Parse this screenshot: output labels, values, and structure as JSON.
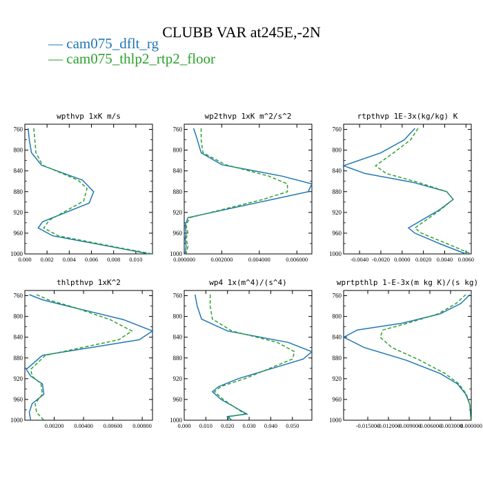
{
  "title": "CLUBB VAR at245E,-2N",
  "legend": [
    {
      "label": "— cam075_dflt_rg",
      "color": "#1f77b4"
    },
    {
      "label": "— cam075_thlp2_rtp2_floor",
      "color": "#2ca02c"
    }
  ],
  "chart_data": [
    {
      "type": "line",
      "title": "wpthvp  1xK m/s",
      "ylim": [
        1000,
        750
      ],
      "yticks": [
        "760",
        "800",
        "840",
        "880",
        "920",
        "960",
        "1000"
      ],
      "xlim": [
        0,
        0.0115
      ],
      "xticks": [
        {
          "v": 0.0,
          "label": "0.000"
        },
        {
          "v": 0.002,
          "label": "0.002"
        },
        {
          "v": 0.004,
          "label": "0.004"
        },
        {
          "v": 0.006,
          "label": "0.006"
        },
        {
          "v": 0.008,
          "label": "0.008"
        },
        {
          "v": 0.01,
          "label": "0.010"
        }
      ],
      "series": [
        {
          "name": "cam075_dflt_rg",
          "x": [
            0.0003,
            0.0004,
            0.0006,
            0.0015,
            0.0052,
            0.0062,
            0.0058,
            0.0016,
            0.0012,
            0.0025,
            0.0075,
            0.0112
          ],
          "y": [
            758,
            780,
            805,
            829,
            858,
            880,
            902,
            938,
            950,
            965,
            985,
            1000
          ]
        },
        {
          "name": "cam075_thlp2_rtp2_floor",
          "x": [
            0.0008,
            0.0009,
            0.001,
            0.0016,
            0.0048,
            0.0056,
            0.0053,
            0.0022,
            0.0017,
            0.003,
            0.0085,
            0.0115
          ],
          "y": [
            758,
            780,
            805,
            829,
            858,
            874,
            898,
            935,
            950,
            965,
            988,
            1000
          ]
        }
      ]
    },
    {
      "type": "line",
      "title": "wp2thvp  1xK m^2/s^2",
      "ylim": [
        1000,
        750
      ],
      "yticks": [
        "760",
        "800",
        "840",
        "880",
        "920",
        "960",
        "1000"
      ],
      "xlim": [
        0,
        0.0068
      ],
      "xticks": [
        {
          "v": 0.0,
          "label": "0.000000"
        },
        {
          "v": 0.002,
          "label": "0.002000"
        },
        {
          "v": 0.004,
          "label": "0.004000"
        },
        {
          "v": 0.006,
          "label": "0.006000"
        }
      ],
      "series": [
        {
          "name": "cam075_dflt_rg",
          "x": [
            0.0005,
            0.0007,
            0.0009,
            0.002,
            0.0052,
            0.0068,
            0.0066,
            0.0047,
            0.0002,
            5e-05,
            0.0001,
            5e-05,
            0.0001,
            5e-05
          ],
          "y": [
            758,
            780,
            805,
            828,
            850,
            865,
            880,
            895,
            930,
            945,
            960,
            970,
            985,
            1000
          ]
        },
        {
          "name": "cam075_thlp2_rtp2_floor",
          "x": [
            0.0009,
            0.0009,
            0.001,
            0.0022,
            0.0045,
            0.0055,
            0.0055,
            0.0042,
            0.0003,
            0.0001,
            0.0002,
            0.0001,
            0.0002,
            0.0001
          ],
          "y": [
            758,
            780,
            805,
            828,
            850,
            865,
            880,
            895,
            930,
            945,
            960,
            970,
            985,
            1000
          ]
        }
      ]
    },
    {
      "type": "line",
      "title": "rtpthvp  1E-3x(kg/kg) K",
      "ylim": [
        1000,
        750
      ],
      "yticks": [
        "760",
        "800",
        "840",
        "880",
        "920",
        "960",
        "1000"
      ],
      "xlim": [
        -0.0055,
        0.0065
      ],
      "xticks": [
        {
          "v": -0.004,
          "label": "-0.0040"
        },
        {
          "v": -0.002,
          "label": "-0.0020"
        },
        {
          "v": 0.0,
          "label": "0.0000"
        },
        {
          "v": 0.002,
          "label": "0.0020"
        },
        {
          "v": 0.004,
          "label": "0.0040"
        },
        {
          "v": 0.006,
          "label": "0.0060"
        }
      ],
      "series": [
        {
          "name": "cam075_dflt_rg",
          "x": [
            0.0012,
            0.0002,
            -0.002,
            -0.0055,
            -0.0035,
            0.001,
            0.0042,
            0.0048,
            0.0035,
            0.0006,
            0.0012,
            0.0035,
            0.006
          ],
          "y": [
            758,
            780,
            805,
            830,
            845,
            862,
            880,
            895,
            915,
            950,
            960,
            980,
            1000
          ]
        },
        {
          "name": "cam075_thlp2_rtp2_floor",
          "x": [
            0.0015,
            0.0008,
            -0.0008,
            -0.0025,
            -0.0015,
            0.0015,
            0.0042,
            0.0048,
            0.0036,
            0.0012,
            0.0018,
            0.0042,
            0.0065
          ],
          "y": [
            758,
            780,
            805,
            830,
            845,
            862,
            880,
            895,
            915,
            950,
            960,
            980,
            1000
          ]
        }
      ]
    },
    {
      "type": "line",
      "title": "thlpthvp  1xK^2",
      "ylim": [
        1000,
        750
      ],
      "yticks": [
        "760",
        "800",
        "840",
        "880",
        "920",
        "960",
        "1000"
      ],
      "xlim": [
        0,
        0.0087
      ],
      "xticks": [
        {
          "v": 0.002,
          "label": "0.00200"
        },
        {
          "v": 0.004,
          "label": "0.00400"
        },
        {
          "v": 0.006,
          "label": "0.00600"
        },
        {
          "v": 0.008,
          "label": "0.00800"
        }
      ],
      "series": [
        {
          "name": "cam075_dflt_rg",
          "x": [
            0.0003,
            0.0012,
            0.0032,
            0.0067,
            0.0087,
            0.0078,
            0.0012,
            0.0001,
            0.0004,
            0.0012,
            0.0013,
            0.0005,
            0.0003,
            0.0004
          ],
          "y": [
            758,
            768,
            782,
            806,
            828,
            845,
            875,
            902,
            915,
            930,
            950,
            968,
            985,
            1000
          ]
        },
        {
          "name": "cam075_thlp2_rtp2_floor",
          "x": [
            0.0008,
            0.0016,
            0.0033,
            0.0058,
            0.0073,
            0.0064,
            0.0014,
            0.0004,
            0.0005,
            0.0011,
            0.0012,
            0.0007,
            0.0008,
            0.0013
          ],
          "y": [
            758,
            768,
            782,
            806,
            828,
            845,
            875,
            902,
            915,
            930,
            950,
            968,
            985,
            1000
          ]
        }
      ]
    },
    {
      "type": "line",
      "title": "wp4  1x(m^4)/(s^4)",
      "ylim": [
        1000,
        750
      ],
      "yticks": [
        "760",
        "800",
        "840",
        "880",
        "920",
        "960",
        "1000"
      ],
      "xlim": [
        0,
        0.059
      ],
      "xticks": [
        {
          "v": 0.0,
          "label": "0.000"
        },
        {
          "v": 0.01,
          "label": "0.010"
        },
        {
          "v": 0.02,
          "label": "0.020"
        },
        {
          "v": 0.03,
          "label": "0.030"
        },
        {
          "v": 0.04,
          "label": "0.040"
        },
        {
          "v": 0.05,
          "label": "0.050"
        }
      ],
      "series": [
        {
          "name": "cam075_dflt_rg",
          "x": [
            0.005,
            0.006,
            0.008,
            0.02,
            0.048,
            0.059,
            0.055,
            0.025,
            0.016,
            0.013,
            0.017,
            0.029,
            0.02,
            0.022
          ],
          "y": [
            758,
            780,
            805,
            828,
            850,
            868,
            882,
            920,
            935,
            945,
            960,
            988,
            993,
            1000
          ]
        },
        {
          "name": "cam075_thlp2_rtp2_floor",
          "x": [
            0.012,
            0.012,
            0.013,
            0.022,
            0.043,
            0.051,
            0.05,
            0.028,
            0.017,
            0.014,
            0.018,
            0.028,
            0.021,
            0.02
          ],
          "y": [
            758,
            780,
            805,
            828,
            850,
            868,
            882,
            920,
            935,
            945,
            960,
            988,
            993,
            1000
          ]
        }
      ]
    },
    {
      "type": "line",
      "title": "wprtpthlp  1-E-3x(m kg K)/(s kg)",
      "ylim": [
        1000,
        750
      ],
      "yticks": [
        "760",
        "800",
        "840",
        "880",
        "920",
        "960",
        "1000"
      ],
      "xlim": [
        -0.0185,
        0.0
      ],
      "xticks": [
        {
          "v": -0.015,
          "label": "-0.015000"
        },
        {
          "v": -0.012,
          "label": "-0.012000"
        },
        {
          "v": -0.009,
          "label": "-0.009000"
        },
        {
          "v": -0.006,
          "label": "-0.006000"
        },
        {
          "v": -0.003,
          "label": "-0.003000"
        },
        {
          "v": 0.0,
          "label": "0.000000"
        }
      ],
      "series": [
        {
          "name": "cam075_dflt_rg",
          "x": [
            -0.0002,
            -0.0015,
            -0.0045,
            -0.01,
            -0.0165,
            -0.0185,
            -0.0155,
            -0.0095,
            -0.0045,
            -0.002,
            -0.0008,
            -0.0002,
            -5e-05
          ],
          "y": [
            758,
            775,
            795,
            813,
            826,
            840,
            860,
            884,
            910,
            930,
            950,
            970,
            1000
          ]
        },
        {
          "name": "cam075_thlp2_rtp2_floor",
          "x": [
            -0.0008,
            -0.0022,
            -0.0048,
            -0.0092,
            -0.0128,
            -0.0132,
            -0.0115,
            -0.0075,
            -0.0038,
            -0.0018,
            -0.0007,
            -0.0002,
            -5e-05
          ],
          "y": [
            758,
            775,
            795,
            813,
            826,
            840,
            860,
            884,
            910,
            930,
            950,
            970,
            1000
          ]
        }
      ]
    }
  ]
}
